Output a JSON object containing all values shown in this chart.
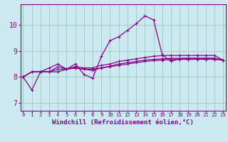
{
  "xlabel": "Windchill (Refroidissement éolien,°C)",
  "background_color": "#cce8f0",
  "grid_color": "#99ccbb",
  "line_color": "#880088",
  "x_ticks": [
    0,
    1,
    2,
    3,
    4,
    5,
    6,
    7,
    8,
    9,
    10,
    11,
    12,
    13,
    14,
    15,
    16,
    17,
    18,
    19,
    20,
    21,
    22,
    23
  ],
  "y_ticks": [
    7,
    8,
    9,
    10
  ],
  "ylim": [
    6.7,
    10.8
  ],
  "xlim": [
    -0.3,
    23.3
  ],
  "series": [
    [
      8.0,
      7.5,
      8.2,
      8.2,
      8.4,
      8.3,
      8.5,
      8.1,
      7.95,
      8.8,
      9.4,
      9.55,
      9.8,
      10.05,
      10.35,
      10.2,
      8.85,
      8.6,
      8.7,
      8.72,
      8.72,
      8.72,
      8.72,
      8.65
    ],
    [
      8.0,
      8.2,
      8.2,
      8.35,
      8.5,
      8.3,
      8.4,
      8.35,
      8.35,
      8.45,
      8.5,
      8.6,
      8.65,
      8.7,
      8.75,
      8.8,
      8.82,
      8.83,
      8.83,
      8.83,
      8.83,
      8.83,
      8.83,
      8.65
    ],
    [
      8.0,
      8.2,
      8.2,
      8.2,
      8.2,
      8.3,
      8.35,
      8.3,
      8.25,
      8.35,
      8.42,
      8.5,
      8.55,
      8.6,
      8.65,
      8.68,
      8.7,
      8.72,
      8.72,
      8.72,
      8.72,
      8.72,
      8.72,
      8.65
    ],
    [
      8.0,
      8.2,
      8.2,
      8.2,
      8.3,
      8.3,
      8.35,
      8.3,
      8.3,
      8.35,
      8.4,
      8.45,
      8.5,
      8.55,
      8.6,
      8.63,
      8.65,
      8.67,
      8.68,
      8.68,
      8.68,
      8.68,
      8.68,
      8.65
    ]
  ],
  "xlabel_fontsize": 6.5,
  "ylabel_fontsize": 7,
  "xtick_fontsize": 5.2,
  "ytick_fontsize": 7,
  "marker_size": 3,
  "line_width": 0.9
}
